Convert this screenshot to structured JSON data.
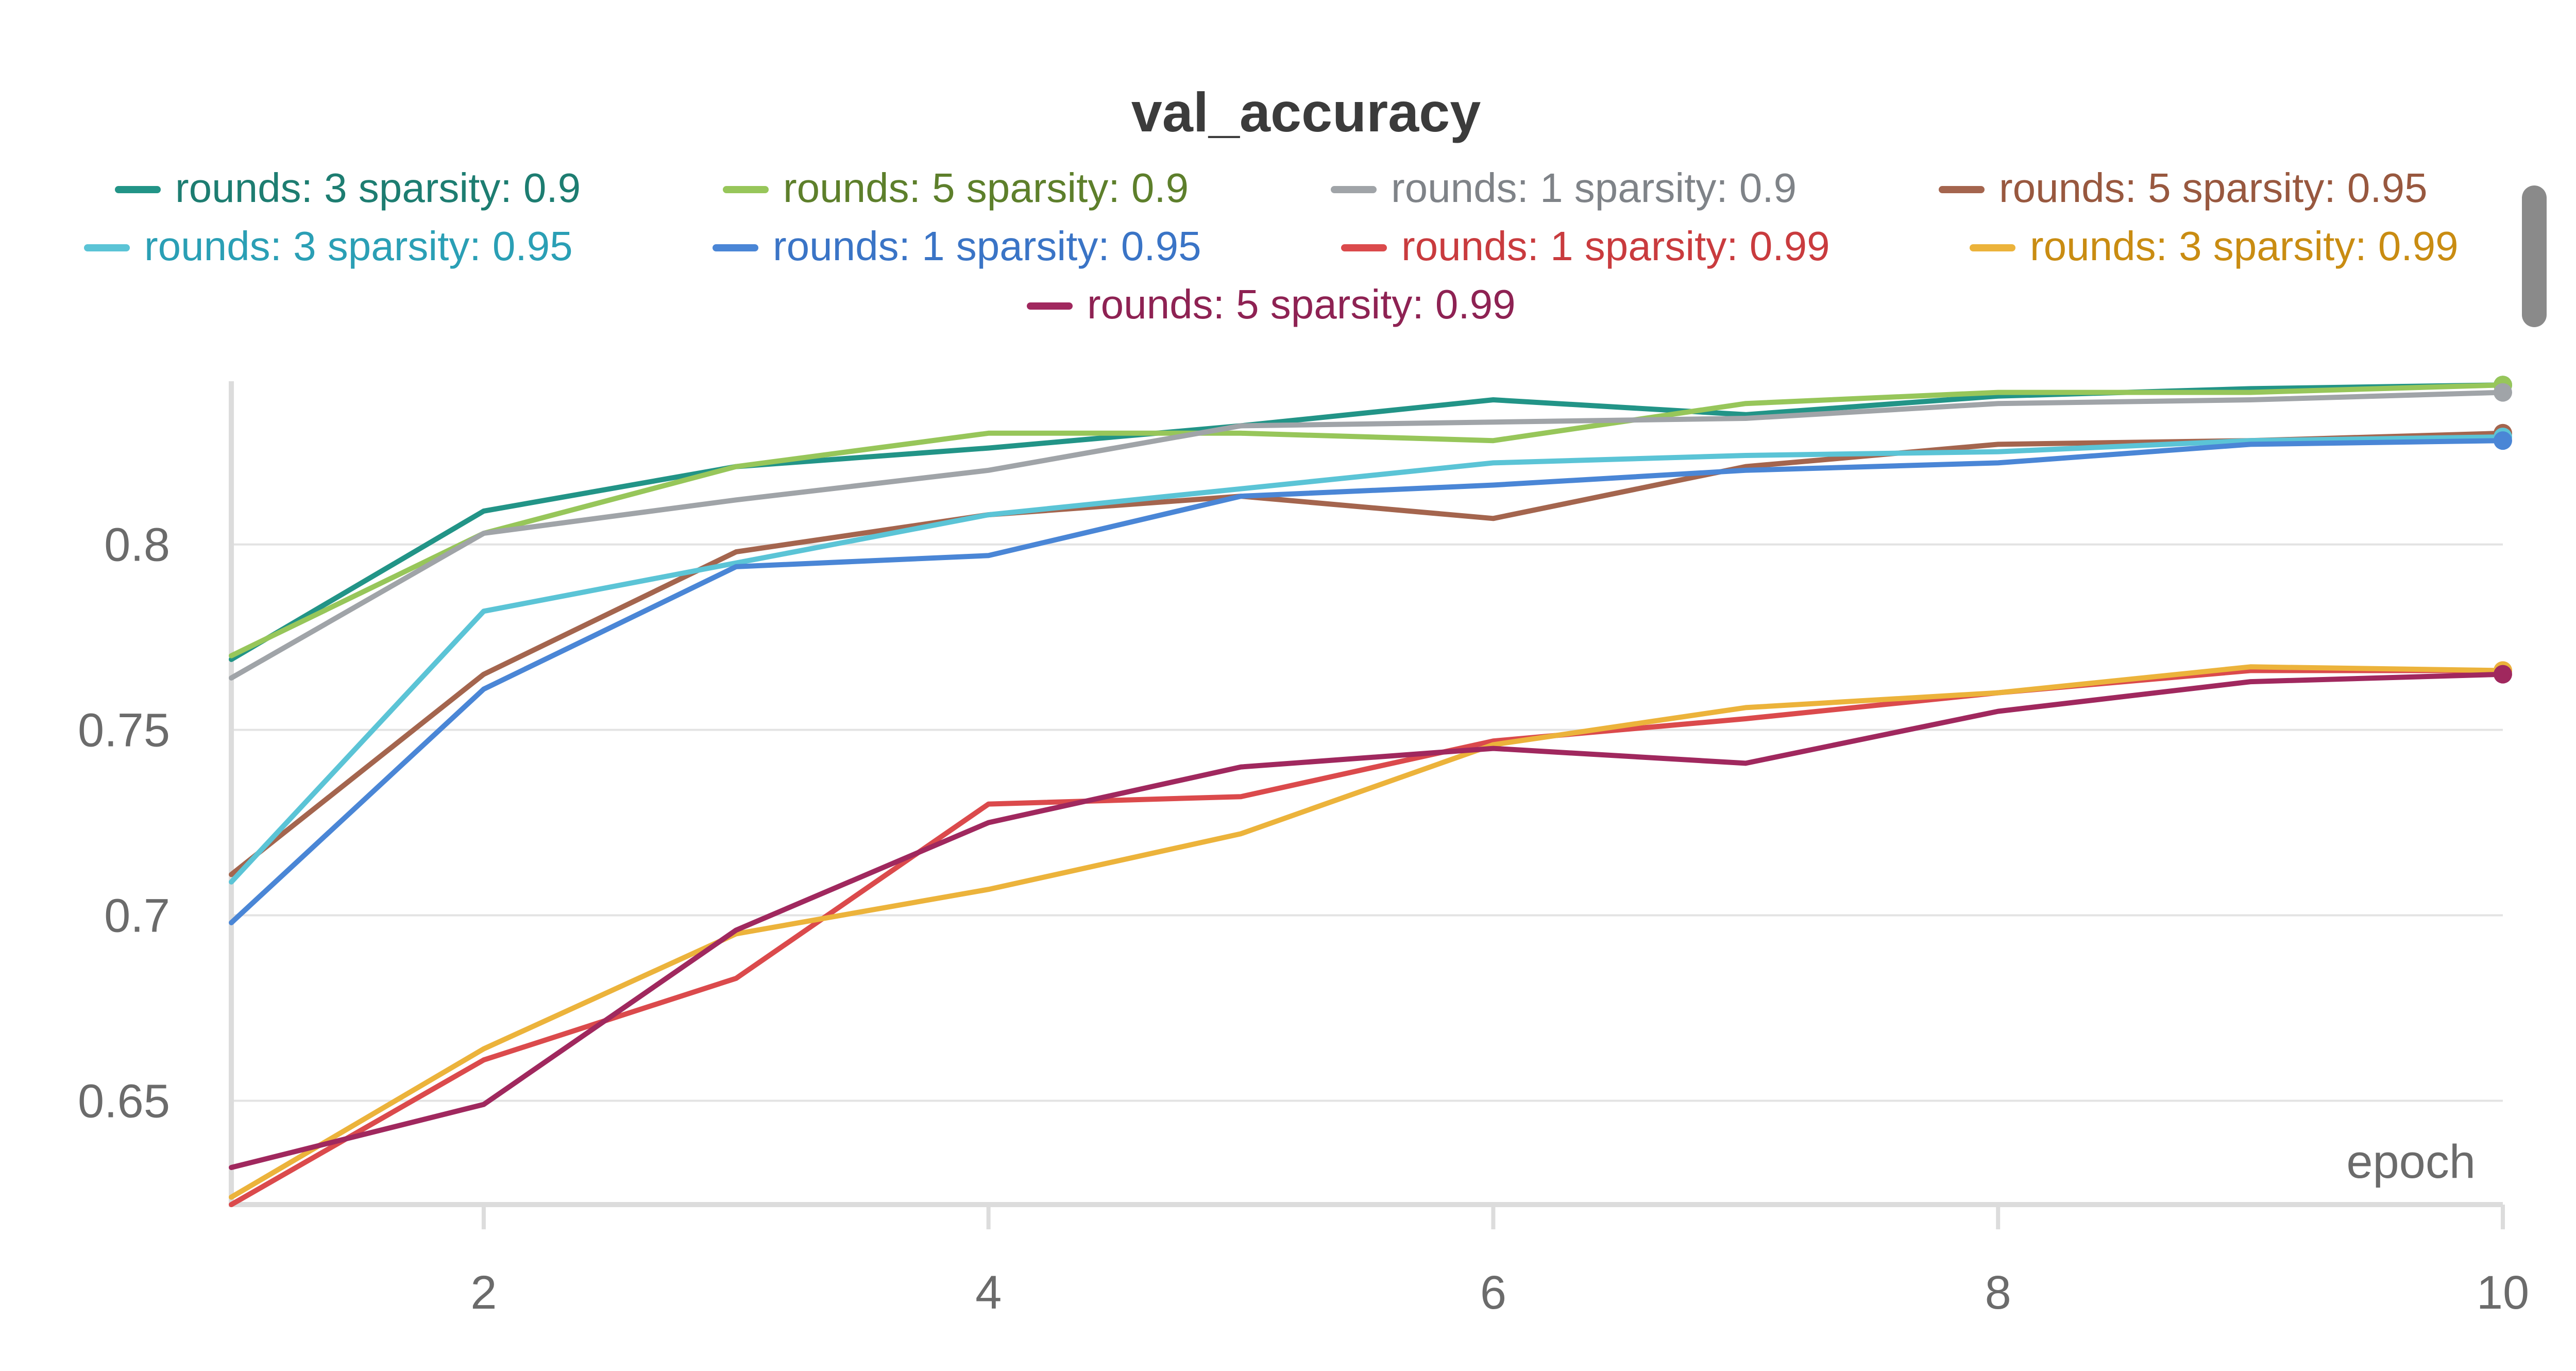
{
  "chart_data": {
    "type": "line",
    "title": "val_accuracy",
    "xlabel": "epoch",
    "ylabel": "",
    "x": [
      1,
      2,
      3,
      4,
      5,
      6,
      7,
      8,
      9,
      10
    ],
    "xlim": [
      1,
      10
    ],
    "ylim": [
      0.622,
      0.844
    ],
    "xticks": [
      2,
      4,
      6,
      8,
      10
    ],
    "xtick_labels": [
      "2",
      "4",
      "6",
      "8",
      "10"
    ],
    "yticks": [
      0.65,
      0.7,
      0.75,
      0.8
    ],
    "ytick_labels": [
      "0.65",
      "0.7",
      "0.75",
      "0.8"
    ],
    "grid": "horizontal",
    "legend_position": "top",
    "series": [
      {
        "name": "rounds: 3 sparsity: 0.9",
        "color": "#229487",
        "values": [
          0.769,
          0.809,
          0.821,
          0.826,
          0.832,
          0.839,
          0.835,
          0.84,
          0.842,
          0.843
        ]
      },
      {
        "name": "rounds: 5 sparsity: 0.9",
        "color": "#97c65a",
        "values": [
          0.77,
          0.803,
          0.821,
          0.83,
          0.83,
          0.828,
          0.838,
          0.841,
          0.841,
          0.843
        ]
      },
      {
        "name": "rounds: 1 sparsity: 0.9",
        "color": "#a0a4a8",
        "values": [
          0.764,
          0.803,
          0.812,
          0.82,
          0.832,
          0.833,
          0.834,
          0.838,
          0.839,
          0.841
        ]
      },
      {
        "name": "rounds: 5 sparsity: 0.95",
        "color": "#a4654e",
        "values": [
          0.711,
          0.765,
          0.798,
          0.808,
          0.813,
          0.807,
          0.821,
          0.827,
          0.828,
          0.83
        ]
      },
      {
        "name": "rounds: 3 sparsity: 0.95",
        "color": "#5bc4d6",
        "values": [
          0.709,
          0.782,
          0.795,
          0.808,
          0.815,
          0.822,
          0.824,
          0.825,
          0.828,
          0.829
        ]
      },
      {
        "name": "rounds: 1 sparsity: 0.95",
        "color": "#4a86d6",
        "values": [
          0.698,
          0.761,
          0.794,
          0.797,
          0.813,
          0.816,
          0.82,
          0.822,
          0.827,
          0.828
        ]
      },
      {
        "name": "rounds: 1 sparsity: 0.99",
        "color": "#db4a4c",
        "values": [
          0.622,
          0.661,
          0.683,
          0.73,
          0.732,
          0.747,
          0.753,
          0.76,
          0.766,
          0.766
        ]
      },
      {
        "name": "rounds: 3 sparsity: 0.99",
        "color": "#ecb33b",
        "values": [
          0.624,
          0.664,
          0.695,
          0.707,
          0.722,
          0.746,
          0.756,
          0.76,
          0.767,
          0.766
        ]
      },
      {
        "name": "rounds: 5 sparsity: 0.99",
        "color": "#a0285e",
        "values": [
          0.632,
          0.649,
          0.696,
          0.725,
          0.74,
          0.745,
          0.741,
          0.755,
          0.763,
          0.765
        ]
      }
    ],
    "legend_text_colors": [
      "#1d7d71",
      "#5d7f2b",
      "#7f8388",
      "#98583f",
      "#2a9fb5",
      "#3a74c6",
      "#c93b3e",
      "#c98c12",
      "#8e2253"
    ]
  }
}
